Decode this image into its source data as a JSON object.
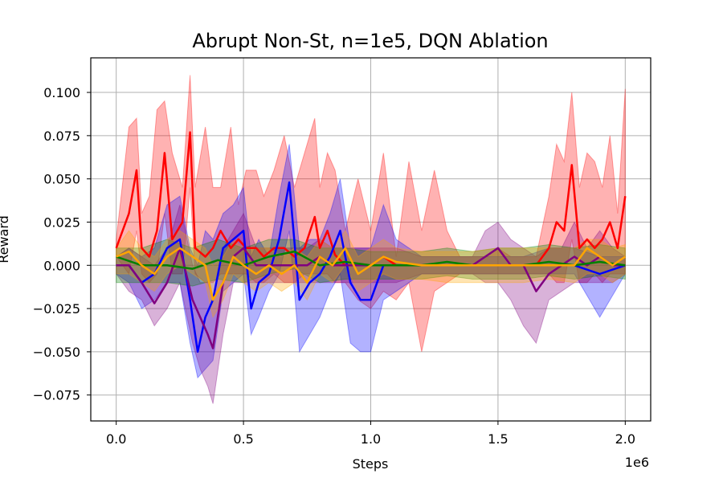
{
  "chart_data": {
    "type": "line",
    "title": "Abrupt Non-St, n=1e5, DQN Ablation",
    "xlabel": "Steps",
    "ylabel": "Reward",
    "x_offset_label": "1e6",
    "xlim": [
      -0.1,
      2.1
    ],
    "ylim": [
      -0.09,
      0.12
    ],
    "x_ticks": [
      0.0,
      0.5,
      1.0,
      1.5,
      2.0
    ],
    "x_tick_labels": [
      "0.0",
      "0.5",
      "1.0",
      "1.5",
      "2.0"
    ],
    "y_ticks": [
      -0.075,
      -0.05,
      -0.025,
      0.0,
      0.025,
      0.05,
      0.075,
      0.1
    ],
    "y_tick_labels": [
      "−0.075",
      "−0.050",
      "−0.025",
      "0.000",
      "0.025",
      "0.050",
      "0.075",
      "0.100"
    ],
    "grid": true,
    "shaded_band": "min/max range around each mean line",
    "series": [
      {
        "color": "#ff0000",
        "x": [
          0.0,
          0.05,
          0.08,
          0.1,
          0.13,
          0.16,
          0.19,
          0.22,
          0.26,
          0.29,
          0.31,
          0.35,
          0.38,
          0.41,
          0.45,
          0.48,
          0.51,
          0.55,
          0.58,
          0.62,
          0.66,
          0.7,
          0.74,
          0.78,
          0.8,
          0.83,
          0.86,
          0.9,
          0.95,
          1.0,
          1.05,
          1.1,
          1.15,
          1.2,
          1.25,
          1.3,
          1.35,
          1.4,
          1.45,
          1.5,
          1.55,
          1.6,
          1.65,
          1.7,
          1.73,
          1.76,
          1.79,
          1.82,
          1.85,
          1.88,
          1.91,
          1.94,
          1.97,
          2.0
        ],
        "y": [
          0.01,
          0.03,
          0.055,
          0.01,
          0.005,
          0.02,
          0.065,
          0.015,
          0.025,
          0.077,
          0.01,
          0.005,
          0.01,
          0.02,
          0.01,
          0.015,
          0.01,
          0.01,
          0.005,
          0.01,
          0.01,
          0.005,
          0.01,
          0.028,
          0.01,
          0.02,
          0.006,
          0.0,
          0.0,
          0.0,
          0.005,
          0.0,
          0.0,
          0.0,
          0.0,
          0.0,
          0.0,
          0.0,
          0.0,
          0.0,
          0.0,
          0.0,
          0.0,
          0.01,
          0.025,
          0.02,
          0.058,
          0.01,
          0.015,
          0.01,
          0.015,
          0.025,
          0.01,
          0.04
        ],
        "upper": [
          0.015,
          0.08,
          0.085,
          0.03,
          0.04,
          0.09,
          0.095,
          0.065,
          0.045,
          0.11,
          0.045,
          0.08,
          0.045,
          0.045,
          0.08,
          0.035,
          0.055,
          0.055,
          0.04,
          0.055,
          0.075,
          0.045,
          0.065,
          0.085,
          0.045,
          0.065,
          0.055,
          0.02,
          0.05,
          0.02,
          0.065,
          0.005,
          0.06,
          0.02,
          0.055,
          0.02,
          0.005,
          0.005,
          0.005,
          0.01,
          0.005,
          0.005,
          0.005,
          0.04,
          0.07,
          0.06,
          0.1,
          0.045,
          0.065,
          0.06,
          0.045,
          0.075,
          0.03,
          0.102
        ],
        "lower": [
          0.005,
          -0.005,
          0.02,
          -0.005,
          -0.01,
          -0.005,
          0.03,
          -0.005,
          -0.005,
          0.045,
          -0.005,
          -0.01,
          -0.01,
          -0.005,
          -0.005,
          -0.005,
          -0.005,
          -0.01,
          -0.01,
          -0.005,
          -0.01,
          -0.01,
          -0.005,
          -0.005,
          -0.005,
          -0.005,
          -0.01,
          -0.01,
          -0.02,
          -0.025,
          -0.015,
          -0.02,
          -0.01,
          -0.05,
          -0.015,
          -0.01,
          -0.005,
          -0.005,
          -0.005,
          -0.005,
          -0.005,
          -0.005,
          -0.005,
          -0.005,
          -0.01,
          -0.01,
          0.015,
          -0.01,
          -0.01,
          -0.005,
          -0.01,
          -0.005,
          -0.005,
          -0.005
        ]
      },
      {
        "color": "#0000ff",
        "x": [
          0.0,
          0.05,
          0.1,
          0.15,
          0.2,
          0.25,
          0.29,
          0.32,
          0.35,
          0.38,
          0.42,
          0.46,
          0.5,
          0.53,
          0.56,
          0.6,
          0.64,
          0.68,
          0.72,
          0.76,
          0.8,
          0.84,
          0.88,
          0.92,
          0.96,
          1.0,
          1.05,
          1.1,
          1.2,
          1.3,
          1.4,
          1.5,
          1.6,
          1.7,
          1.8,
          1.9,
          2.0
        ],
        "y": [
          0.0,
          0.0,
          -0.01,
          -0.005,
          0.01,
          0.015,
          -0.02,
          -0.05,
          -0.03,
          -0.02,
          0.01,
          0.015,
          0.02,
          -0.025,
          -0.01,
          -0.005,
          0.015,
          0.048,
          -0.02,
          -0.01,
          -0.005,
          0.005,
          0.02,
          -0.01,
          -0.02,
          -0.02,
          0.0,
          0.0,
          0.0,
          0.0,
          0.0,
          0.0,
          0.0,
          0.0,
          0.0,
          -0.005,
          0.0
        ],
        "upper": [
          0.005,
          0.01,
          0.005,
          0.01,
          0.035,
          0.04,
          0.01,
          0.0,
          0.02,
          0.015,
          0.03,
          0.035,
          0.045,
          0.005,
          0.015,
          0.005,
          0.04,
          0.07,
          0.01,
          0.015,
          0.015,
          0.03,
          0.05,
          0.01,
          0.01,
          0.01,
          0.035,
          0.015,
          0.005,
          0.005,
          0.005,
          0.005,
          0.005,
          0.01,
          0.01,
          0.005,
          0.005
        ],
        "lower": [
          -0.005,
          -0.01,
          -0.025,
          -0.02,
          -0.01,
          -0.01,
          -0.045,
          -0.065,
          -0.06,
          -0.055,
          -0.015,
          -0.01,
          -0.005,
          -0.04,
          -0.03,
          -0.015,
          -0.005,
          0.02,
          -0.05,
          -0.04,
          -0.03,
          -0.015,
          -0.005,
          -0.045,
          -0.05,
          -0.05,
          -0.02,
          -0.015,
          -0.005,
          -0.005,
          -0.005,
          -0.005,
          -0.005,
          -0.005,
          -0.005,
          -0.03,
          -0.005
        ]
      },
      {
        "color": "#800080",
        "x": [
          0.0,
          0.05,
          0.1,
          0.15,
          0.2,
          0.25,
          0.3,
          0.33,
          0.36,
          0.38,
          0.42,
          0.46,
          0.5,
          0.55,
          0.6,
          0.65,
          0.7,
          0.75,
          0.8,
          0.85,
          0.9,
          0.95,
          1.0,
          1.1,
          1.2,
          1.3,
          1.4,
          1.45,
          1.5,
          1.55,
          1.6,
          1.65,
          1.7,
          1.75,
          1.8,
          1.85,
          1.9,
          1.95,
          2.0
        ],
        "y": [
          0.0,
          0.0,
          -0.01,
          -0.022,
          -0.01,
          0.01,
          -0.02,
          -0.03,
          -0.04,
          -0.048,
          -0.01,
          0.005,
          0.01,
          0.0,
          0.0,
          0.0,
          0.0,
          0.0,
          0.005,
          0.0,
          0.0,
          0.0,
          0.0,
          0.0,
          0.0,
          0.0,
          0.0,
          0.005,
          0.01,
          0.0,
          0.0,
          -0.015,
          -0.005,
          0.0,
          0.005,
          0.0,
          0.005,
          0.0,
          0.0
        ],
        "upper": [
          0.005,
          0.01,
          0.005,
          0.0,
          0.01,
          0.035,
          0.0,
          -0.01,
          -0.01,
          -0.02,
          0.01,
          0.02,
          0.03,
          0.01,
          0.01,
          0.01,
          0.01,
          0.01,
          0.015,
          0.01,
          0.01,
          0.01,
          0.01,
          0.01,
          0.005,
          0.005,
          0.005,
          0.02,
          0.025,
          0.015,
          0.01,
          0.005,
          0.01,
          0.01,
          0.025,
          0.01,
          0.02,
          0.01,
          0.005
        ],
        "lower": [
          -0.005,
          -0.015,
          -0.02,
          -0.035,
          -0.025,
          -0.01,
          -0.045,
          -0.06,
          -0.07,
          -0.08,
          -0.04,
          -0.01,
          -0.01,
          -0.01,
          -0.01,
          -0.01,
          -0.01,
          -0.01,
          -0.01,
          -0.01,
          -0.01,
          -0.01,
          -0.01,
          -0.01,
          -0.005,
          -0.005,
          -0.005,
          -0.01,
          -0.01,
          -0.02,
          -0.035,
          -0.045,
          -0.02,
          -0.015,
          -0.01,
          -0.01,
          -0.01,
          -0.01,
          -0.005
        ]
      },
      {
        "color": "#008000",
        "x": [
          0.0,
          0.1,
          0.2,
          0.3,
          0.4,
          0.5,
          0.6,
          0.7,
          0.8,
          0.9,
          1.0,
          1.1,
          1.2,
          1.3,
          1.4,
          1.5,
          1.6,
          1.7,
          1.8,
          1.9,
          2.0
        ],
        "y": [
          0.005,
          0.0,
          0.0,
          -0.002,
          0.003,
          0.0,
          0.005,
          0.008,
          0.0,
          0.002,
          0.0,
          0.0,
          0.0,
          0.002,
          0.0,
          0.0,
          0.0,
          0.002,
          0.0,
          0.002,
          0.0
        ],
        "upper": [
          0.01,
          0.01,
          0.015,
          0.01,
          0.015,
          0.01,
          0.015,
          0.015,
          0.01,
          0.01,
          0.008,
          0.008,
          0.008,
          0.01,
          0.008,
          0.01,
          0.01,
          0.012,
          0.01,
          0.012,
          0.01
        ],
        "lower": [
          -0.01,
          -0.01,
          -0.01,
          -0.012,
          -0.008,
          -0.01,
          -0.005,
          -0.002,
          -0.01,
          -0.008,
          -0.008,
          -0.008,
          -0.008,
          -0.006,
          -0.008,
          -0.008,
          -0.008,
          -0.006,
          -0.008,
          -0.006,
          -0.008
        ]
      },
      {
        "color": "#ffa500",
        "x": [
          0.0,
          0.05,
          0.1,
          0.15,
          0.2,
          0.25,
          0.3,
          0.35,
          0.38,
          0.42,
          0.46,
          0.5,
          0.55,
          0.6,
          0.65,
          0.7,
          0.75,
          0.8,
          0.85,
          0.9,
          0.95,
          1.0,
          1.05,
          1.1,
          1.2,
          1.3,
          1.4,
          1.5,
          1.6,
          1.7,
          1.8,
          1.85,
          1.9,
          1.95,
          2.0
        ],
        "y": [
          0.005,
          0.008,
          0.0,
          -0.005,
          0.005,
          0.01,
          0.005,
          0.0,
          -0.02,
          -0.01,
          0.005,
          0.0,
          -0.005,
          0.0,
          -0.005,
          0.0,
          -0.01,
          0.005,
          0.0,
          0.01,
          -0.005,
          0.0,
          0.005,
          0.002,
          0.0,
          0.0,
          0.0,
          0.0,
          0.0,
          0.0,
          0.0,
          0.01,
          0.005,
          0.0,
          0.005
        ],
        "upper": [
          0.01,
          0.02,
          0.01,
          0.005,
          0.015,
          0.02,
          0.015,
          0.01,
          0.0,
          0.005,
          0.015,
          0.01,
          0.01,
          0.01,
          0.005,
          0.01,
          0.005,
          0.015,
          0.01,
          0.02,
          0.005,
          0.01,
          0.015,
          0.01,
          0.008,
          0.008,
          0.008,
          0.01,
          0.01,
          0.01,
          0.01,
          0.015,
          0.015,
          0.01,
          0.012
        ],
        "lower": [
          -0.005,
          -0.005,
          -0.01,
          -0.015,
          -0.005,
          0.0,
          -0.005,
          -0.01,
          -0.03,
          -0.02,
          -0.005,
          -0.01,
          -0.015,
          -0.01,
          -0.015,
          -0.01,
          -0.02,
          -0.005,
          -0.01,
          0.0,
          -0.015,
          -0.01,
          -0.005,
          -0.008,
          -0.008,
          -0.01,
          -0.01,
          -0.01,
          -0.01,
          -0.008,
          -0.01,
          -0.005,
          -0.005,
          -0.01,
          -0.005
        ]
      }
    ]
  }
}
